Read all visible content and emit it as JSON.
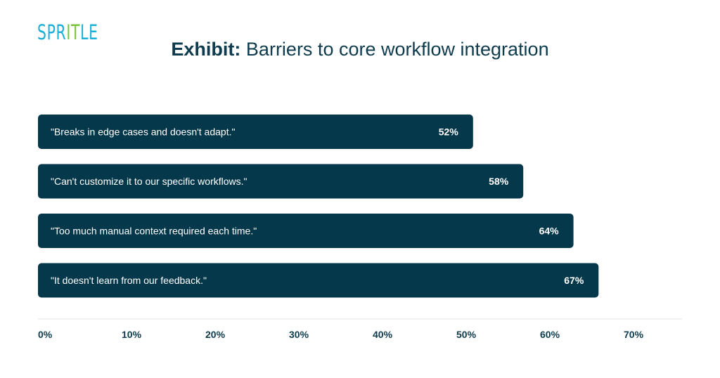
{
  "logo": {
    "text": "SPRITLE",
    "letters": [
      {
        "ch": "S",
        "color": "#1ab0d6"
      },
      {
        "ch": "P",
        "color": "#1ab0d6"
      },
      {
        "ch": "R",
        "color": "#1ab0d6"
      },
      {
        "ch": "I",
        "color": "#78c23c"
      },
      {
        "ch": "T",
        "color": "#78c23c"
      },
      {
        "ch": "L",
        "color": "#1ab0d6"
      },
      {
        "ch": "E",
        "color": "#1ab0d6"
      }
    ]
  },
  "title": {
    "prefix": "Exhibit:",
    "text": "Barriers to core workflow integration"
  },
  "colors": {
    "bar": "#05384b",
    "bar_text": "#ffffff",
    "axis_text": "#0e3b4d",
    "axis_line": "#e2e6e8"
  },
  "chart_data": {
    "type": "bar",
    "orientation": "horizontal",
    "categories": [
      "\"Breaks in edge cases and doesn't adapt.\"",
      "\"Can't customize it to our specific workflows.\"",
      "\"Too much manual context required each time.\"",
      "\"It doesn't learn from our feedback.\""
    ],
    "values": [
      52,
      58,
      64,
      67
    ],
    "value_labels": [
      "52%",
      "58%",
      "64%",
      "67%"
    ],
    "xlim": [
      0,
      70
    ],
    "x_ticks": [
      0,
      10,
      20,
      30,
      40,
      50,
      60,
      70
    ],
    "x_tick_labels": [
      "0%",
      "10%",
      "20%",
      "30%",
      "40%",
      "50%",
      "60%",
      "70%"
    ],
    "grid": false,
    "legend": "none"
  }
}
